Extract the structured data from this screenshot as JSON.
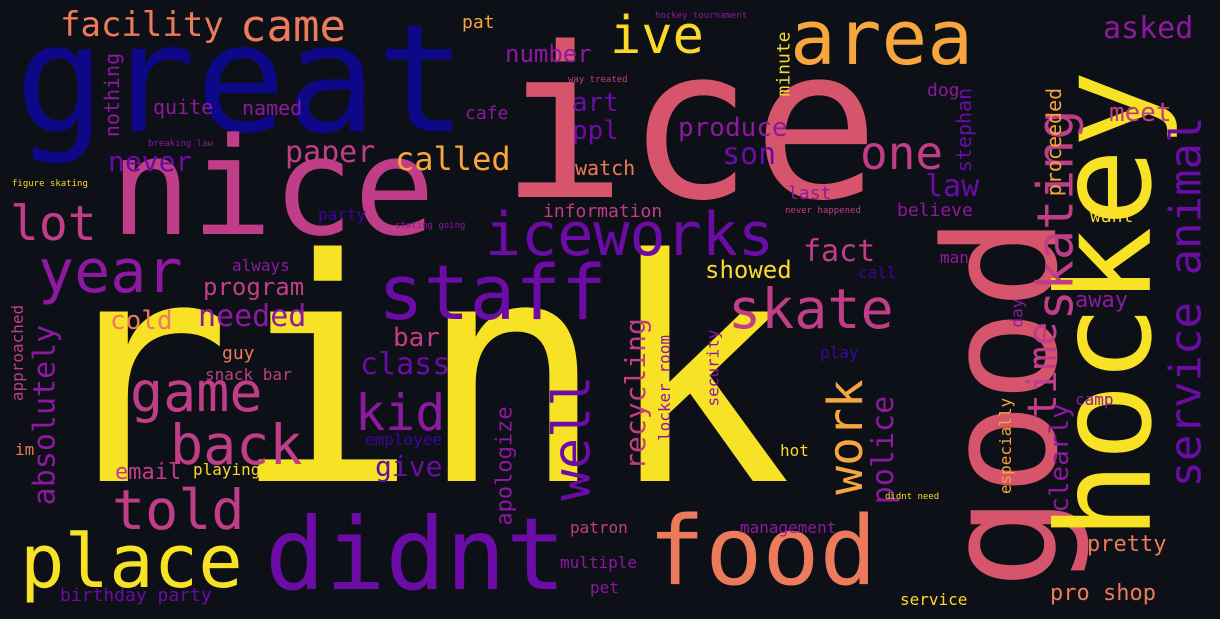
{
  "palette": {
    "background": "#0d1017",
    "yellow": "#f7e225",
    "gold": "#fbd92a",
    "orange": "#f6a63c",
    "salmon": "#ec7b5c",
    "pink": "#d6546c",
    "magenta": "#c03e87",
    "purple": "#8d19a0",
    "violet": "#6a0ca5",
    "indigo": "#3e049c",
    "navy": "#0d0887"
  },
  "words": [
    {
      "text": "rink",
      "color": "#f7e225"
    },
    {
      "text": "ice",
      "color": "#d6546c"
    },
    {
      "text": "great",
      "color": "#0d0887"
    },
    {
      "text": "nice",
      "color": "#c03e87"
    },
    {
      "text": "good",
      "color": "#d6546c"
    },
    {
      "text": "hockey",
      "color": "#f7e225"
    },
    {
      "text": "didnt",
      "color": "#6a0ca5"
    },
    {
      "text": "food",
      "color": "#ec7b5c"
    },
    {
      "text": "staff",
      "color": "#6a0ca5"
    },
    {
      "text": "place",
      "color": "#f7e225"
    },
    {
      "text": "area",
      "color": "#f6a63c"
    },
    {
      "text": "iceworks",
      "color": "#6a0ca5"
    },
    {
      "text": "year",
      "color": "#8d19a0"
    },
    {
      "text": "game",
      "color": "#c03e87"
    },
    {
      "text": "back",
      "color": "#c03e87"
    },
    {
      "text": "told",
      "color": "#c03e87"
    },
    {
      "text": "skate",
      "color": "#c03e87"
    },
    {
      "text": "skating",
      "color": "#c03e87"
    },
    {
      "text": "service animal",
      "color": "#6a0ca5"
    },
    {
      "text": "came",
      "color": "#ec7b5c"
    },
    {
      "text": "facility",
      "color": "#ec7b5c"
    },
    {
      "text": "ive",
      "color": "#fbd92a"
    },
    {
      "text": "one",
      "color": "#c03e87"
    },
    {
      "text": "kid",
      "color": "#8d19a0"
    },
    {
      "text": "well",
      "color": "#6a0ca5"
    },
    {
      "text": "work",
      "color": "#f6a63c"
    },
    {
      "text": "lot",
      "color": "#c03e87"
    },
    {
      "text": "time",
      "color": "#c03e87"
    },
    {
      "text": "asked",
      "color": "#8d19a0"
    },
    {
      "text": "called",
      "color": "#f6a63c"
    },
    {
      "text": "paper",
      "color": "#c03e87"
    },
    {
      "text": "son",
      "color": "#6a0ca5"
    },
    {
      "text": "law",
      "color": "#6a0ca5"
    },
    {
      "text": "fact",
      "color": "#c03e87"
    },
    {
      "text": "needed",
      "color": "#8d19a0"
    },
    {
      "text": "absolutely",
      "color": "#8d19a0"
    },
    {
      "text": "police",
      "color": "#8d19a0"
    },
    {
      "text": "clearly",
      "color": "#8d19a0"
    },
    {
      "text": "recycling",
      "color": "#c03e87"
    },
    {
      "text": "class",
      "color": "#6a0ca5"
    },
    {
      "text": "never",
      "color": "#6a0ca5"
    },
    {
      "text": "number",
      "color": "#8d19a0"
    },
    {
      "text": "art",
      "color": "#6a0ca5"
    },
    {
      "text": "ppl",
      "color": "#6a0ca5"
    },
    {
      "text": "produce",
      "color": "#8d19a0"
    },
    {
      "text": "meet",
      "color": "#c03e87"
    },
    {
      "text": "cold",
      "color": "#ec7b5c"
    },
    {
      "text": "program",
      "color": "#c03e87"
    },
    {
      "text": "bar",
      "color": "#c03e87"
    },
    {
      "text": "give",
      "color": "#6a0ca5"
    },
    {
      "text": "email",
      "color": "#c03e87"
    },
    {
      "text": "showed",
      "color": "#fbd92a"
    },
    {
      "text": "apologize",
      "color": "#8d19a0"
    },
    {
      "text": "away",
      "color": "#8d19a0"
    },
    {
      "text": "pretty",
      "color": "#ec7b5c"
    },
    {
      "text": "pro shop",
      "color": "#ec7b5c"
    },
    {
      "text": "stephan",
      "color": "#6a0ca5"
    },
    {
      "text": "proceeded",
      "color": "#f6a63c"
    },
    {
      "text": "quite",
      "color": "#8d19a0"
    },
    {
      "text": "named",
      "color": "#8d19a0"
    },
    {
      "text": "cafe",
      "color": "#8d19a0"
    },
    {
      "text": "nothing",
      "color": "#8d19a0"
    },
    {
      "text": "watch",
      "color": "#ec7b5c"
    },
    {
      "text": "information",
      "color": "#c03e87"
    },
    {
      "text": "last",
      "color": "#8d19a0"
    },
    {
      "text": "believe",
      "color": "#8d19a0"
    },
    {
      "text": "want",
      "color": "#fbd92a"
    },
    {
      "text": "dog",
      "color": "#8d19a0"
    },
    {
      "text": "minute",
      "color": "#fbd92a"
    },
    {
      "text": "pat",
      "color": "#f6a63c"
    },
    {
      "text": "party",
      "color": "#3e049c"
    },
    {
      "text": "always",
      "color": "#8d19a0"
    },
    {
      "text": "man",
      "color": "#8d19a0"
    },
    {
      "text": "call",
      "color": "#3e049c"
    },
    {
      "text": "day",
      "color": "#8d19a0"
    },
    {
      "text": "guy",
      "color": "#ec7b5c"
    },
    {
      "text": "snack bar",
      "color": "#c03e87"
    },
    {
      "text": "approached",
      "color": "#c03e87"
    },
    {
      "text": "im",
      "color": "#ec7b5c"
    },
    {
      "text": "employee",
      "color": "#3e049c"
    },
    {
      "text": "playing",
      "color": "#fbd92a"
    },
    {
      "text": "locker room",
      "color": "#8d19a0"
    },
    {
      "text": "security",
      "color": "#8d19a0"
    },
    {
      "text": "play",
      "color": "#3e049c"
    },
    {
      "text": "hot",
      "color": "#fbd92a"
    },
    {
      "text": "especially",
      "color": "#f6a63c"
    },
    {
      "text": "camp",
      "color": "#8d19a0"
    },
    {
      "text": "patron",
      "color": "#c03e87"
    },
    {
      "text": "management",
      "color": "#8d19a0"
    },
    {
      "text": "multiple",
      "color": "#8d19a0"
    },
    {
      "text": "pet",
      "color": "#8d19a0"
    },
    {
      "text": "birthday party",
      "color": "#6a0ca5"
    },
    {
      "text": "service",
      "color": "#fbd92a"
    },
    {
      "text": "hockey tournament",
      "color": "#8d19a0"
    },
    {
      "text": "way treated",
      "color": "#c03e87"
    },
    {
      "text": "breaking law",
      "color": "#8d19a0"
    },
    {
      "text": "figure skating",
      "color": "#fbd92a"
    },
    {
      "text": "stating going",
      "color": "#8d19a0"
    },
    {
      "text": "never happened",
      "color": "#c03e87"
    },
    {
      "text": "didnt need",
      "color": "#fbd92a"
    }
  ]
}
